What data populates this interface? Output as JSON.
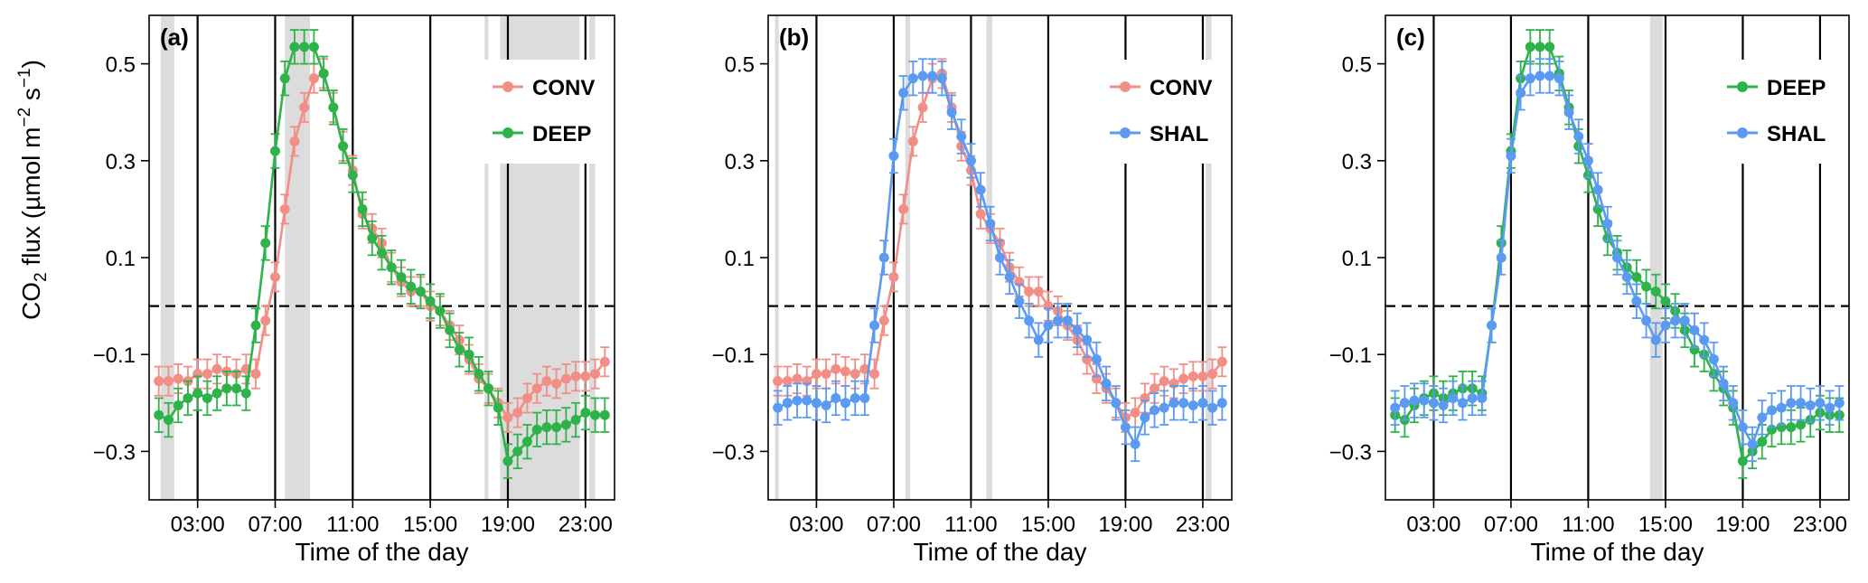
{
  "chart_data": {
    "type": "line",
    "ylabel": "CO2 flux (µmol m−2 s−1)",
    "shared": {
      "xlabel": "Time of the day",
      "x_ticks": [
        3,
        7,
        11,
        15,
        19,
        23
      ],
      "x_tick_labels": [
        "03:00",
        "07:00",
        "11:00",
        "15:00",
        "19:00",
        "23:00"
      ],
      "xlim": [
        0.5,
        24.5
      ],
      "ylim": [
        -0.4,
        0.6
      ],
      "y_ticks": [
        -0.3,
        -0.1,
        0.1,
        0.3,
        0.5
      ],
      "y_tick_labels": [
        "−0.3",
        "−0.1",
        "0.1",
        "0.3",
        "0.5"
      ],
      "zero_line": 0,
      "vertical_lines": [
        3,
        7,
        11,
        15,
        19,
        23
      ],
      "x": [
        1,
        1.5,
        2,
        2.5,
        3,
        3.5,
        4,
        4.5,
        5,
        5.5,
        6,
        6.5,
        7,
        7.5,
        8,
        8.5,
        9,
        9.5,
        10,
        10.5,
        11,
        11.5,
        12,
        12.5,
        13,
        13.5,
        14,
        14.5,
        15,
        15.5,
        16,
        16.5,
        17,
        17.5,
        18,
        18.5,
        19,
        19.5,
        20,
        20.5,
        21,
        21.5,
        22,
        22.5,
        23,
        23.5,
        24
      ]
    },
    "colors": {
      "CONV": "#f28e86",
      "DEEP": "#2db34a",
      "SHAL": "#5b9af2"
    },
    "series_values": {
      "CONV": [
        -0.155,
        -0.155,
        -0.15,
        -0.155,
        -0.14,
        -0.14,
        -0.13,
        -0.135,
        -0.14,
        -0.13,
        -0.14,
        -0.03,
        0.06,
        0.2,
        0.34,
        0.41,
        0.47,
        0.48,
        0.41,
        0.33,
        0.28,
        0.19,
        0.16,
        0.13,
        0.08,
        0.05,
        0.03,
        0.03,
        0.0,
        -0.01,
        -0.04,
        -0.07,
        -0.11,
        -0.15,
        -0.17,
        -0.2,
        -0.23,
        -0.22,
        -0.19,
        -0.17,
        -0.155,
        -0.16,
        -0.15,
        -0.145,
        -0.145,
        -0.14,
        -0.115
      ],
      "DEEP": [
        -0.225,
        -0.235,
        -0.205,
        -0.19,
        -0.18,
        -0.19,
        -0.18,
        -0.17,
        -0.17,
        -0.18,
        -0.04,
        0.13,
        0.32,
        0.47,
        0.535,
        0.535,
        0.535,
        0.48,
        0.41,
        0.33,
        0.27,
        0.2,
        0.14,
        0.11,
        0.08,
        0.06,
        0.04,
        0.03,
        0.01,
        -0.01,
        -0.05,
        -0.09,
        -0.1,
        -0.14,
        -0.17,
        -0.21,
        -0.32,
        -0.3,
        -0.28,
        -0.255,
        -0.25,
        -0.25,
        -0.245,
        -0.235,
        -0.22,
        -0.225,
        -0.225
      ],
      "SHAL": [
        -0.21,
        -0.2,
        -0.195,
        -0.195,
        -0.2,
        -0.205,
        -0.19,
        -0.2,
        -0.19,
        -0.19,
        -0.04,
        0.1,
        0.31,
        0.44,
        0.47,
        0.475,
        0.475,
        0.47,
        0.4,
        0.35,
        0.3,
        0.24,
        0.17,
        0.1,
        0.06,
        0.01,
        -0.03,
        -0.07,
        -0.04,
        -0.03,
        -0.03,
        -0.05,
        -0.07,
        -0.11,
        -0.16,
        -0.2,
        -0.25,
        -0.285,
        -0.23,
        -0.215,
        -0.21,
        -0.2,
        -0.2,
        -0.205,
        -0.2,
        -0.21,
        -0.2
      ]
    },
    "panels": [
      {
        "tag": "(a)",
        "series": [
          {
            "name": "CONV",
            "err": 0.03
          },
          {
            "name": "DEEP",
            "err": 0.035
          }
        ],
        "shaded": [
          [
            1.1,
            1.8
          ],
          [
            7.5,
            8.8
          ],
          [
            17.8,
            18.0
          ],
          [
            18.6,
            22.7
          ],
          [
            23.2,
            23.5
          ]
        ]
      },
      {
        "tag": "(b)",
        "series": [
          {
            "name": "CONV",
            "err": 0.03
          },
          {
            "name": "SHAL",
            "err": 0.035
          }
        ],
        "shaded": [
          [
            0.85,
            1.05
          ],
          [
            7.6,
            7.85
          ],
          [
            11.8,
            12.1
          ],
          [
            23.15,
            23.45
          ]
        ]
      },
      {
        "tag": "(c)",
        "series": [
          {
            "name": "DEEP",
            "err": 0.035
          },
          {
            "name": "SHAL",
            "err": 0.035
          }
        ],
        "shaded": [
          [
            14.2,
            14.85
          ]
        ]
      }
    ]
  }
}
